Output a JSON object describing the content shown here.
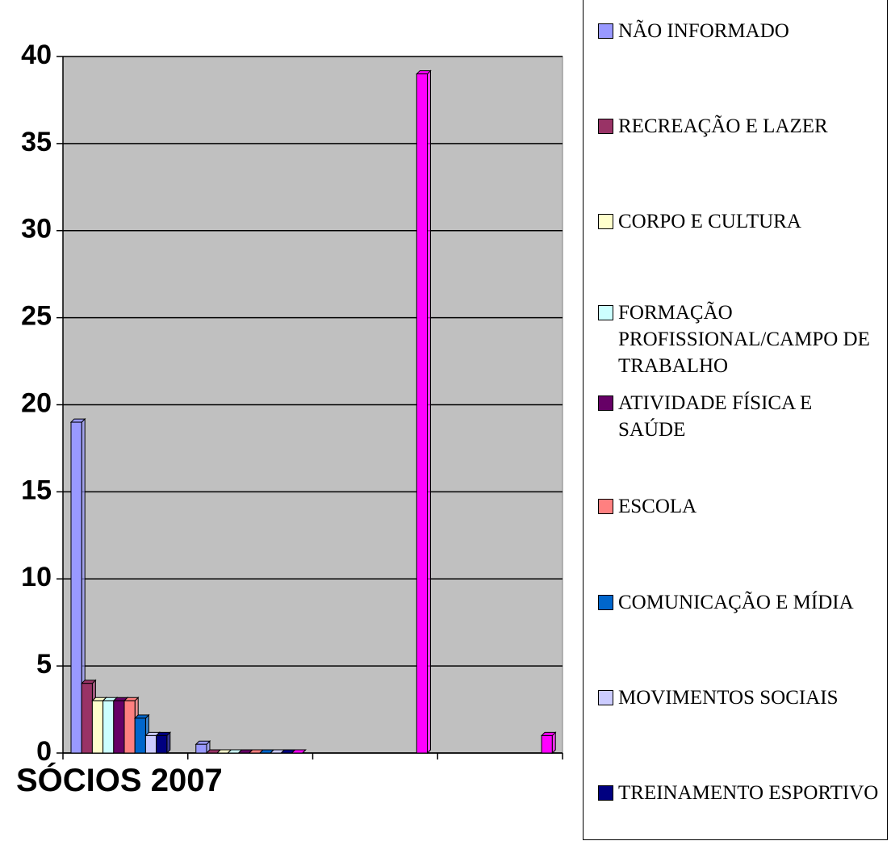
{
  "chart_data": {
    "type": "bar",
    "categories": [
      "SÓCIOS 2007",
      null,
      null,
      null
    ],
    "series": [
      {
        "name": "NÃO INFORMADO",
        "color": "#9999ff",
        "values": [
          19,
          0.5,
          null,
          null
        ]
      },
      {
        "name": "RECREAÇÃO E LAZER",
        "color": "#993366",
        "values": [
          4,
          0,
          null,
          null
        ]
      },
      {
        "name": "CORPO E CULTURA",
        "color": "#ffffcc",
        "values": [
          3,
          0,
          null,
          null
        ]
      },
      {
        "name": "FORMAÇÃO PROFISSIONAL/CAMPO DE TRABALHO",
        "color": "#ccffff",
        "values": [
          3,
          0,
          null,
          null
        ]
      },
      {
        "name": "ATIVIDADE FÍSICA E SAÚDE",
        "color": "#660066",
        "values": [
          3,
          0,
          null,
          null
        ]
      },
      {
        "name": "ESCOLA",
        "color": "#ff8080",
        "values": [
          3,
          0,
          null,
          null
        ]
      },
      {
        "name": "COMUNICAÇÃO E MÍDIA",
        "color": "#0066cc",
        "values": [
          2,
          0,
          null,
          null
        ]
      },
      {
        "name": "MOVIMENTOS SOCIAIS",
        "color": "#ccccff",
        "values": [
          1,
          0,
          null,
          null
        ]
      },
      {
        "name": "TREINAMENTO ESPORTIVO",
        "color": "#000080",
        "values": [
          1,
          0,
          null,
          null
        ]
      },
      {
        "color": "#ff00ff",
        "values": [
          null,
          0,
          39,
          1
        ]
      }
    ],
    "ylim": [
      0,
      40
    ],
    "yticks": [
      0,
      5,
      10,
      15,
      20,
      25,
      30,
      35,
      40
    ],
    "grid": true,
    "legend": "right"
  }
}
